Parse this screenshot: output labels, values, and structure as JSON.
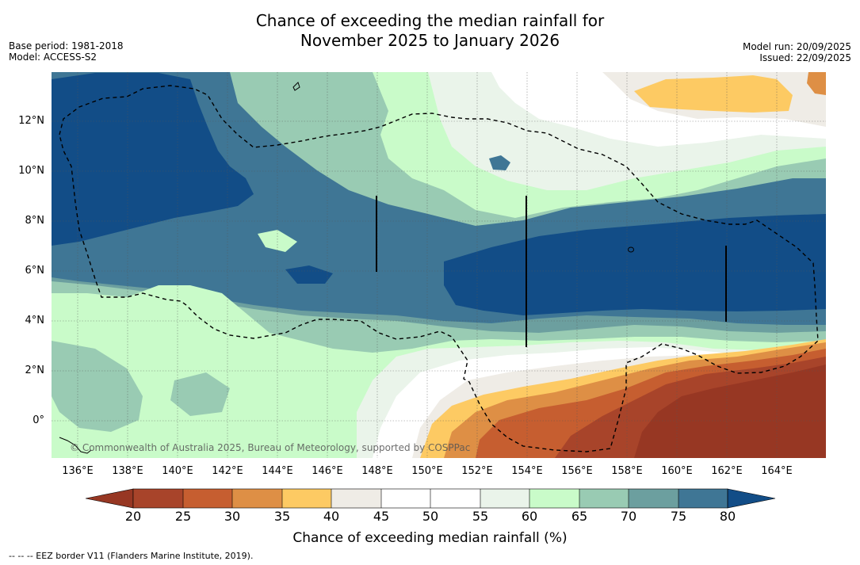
{
  "title": {
    "line1": "Chance of exceeding the median rainfall for",
    "line2": "November 2025 to January 2026"
  },
  "meta_left": {
    "base_period": "Base period: 1981-2018",
    "model": "Model: ACCESS-S2"
  },
  "meta_right": {
    "model_run": "Model run: 20/09/2025",
    "issued": "Issued: 22/09/2025"
  },
  "map": {
    "lat_labels": [
      "12°N",
      "10°N",
      "8°N",
      "6°N",
      "4°N",
      "2°N",
      "0°"
    ],
    "lon_labels": [
      "136°E",
      "138°E",
      "140°E",
      "142°E",
      "144°E",
      "146°E",
      "148°E",
      "150°E",
      "152°E",
      "154°E",
      "156°E",
      "158°E",
      "160°E",
      "162°E",
      "164°E"
    ],
    "copyright": "© Commonwealth of Australia 2025, Bureau of Meteorology, supported by COSPPac",
    "colors": {
      "c20": "#a8442a",
      "c25": "#c65e30",
      "c30": "#de8f45",
      "c35": "#fdca63",
      "c40": "#efece6",
      "c45": "#ffffff",
      "c50": "#ffffff",
      "c55": "#eaf4ea",
      "c60": "#c9fbc9",
      "c65": "#99cbb3",
      "c70": "#6c9f9f",
      "c75": "#3f7695",
      "c80": "#124d87",
      "below": "#973723"
    }
  },
  "colorbar": {
    "ticks": [
      "20",
      "25",
      "30",
      "35",
      "40",
      "45",
      "50",
      "55",
      "60",
      "65",
      "70",
      "75",
      "80"
    ],
    "label": "Chance of exceeding median rainfall (%)"
  },
  "legend_note": "--  --  -- EEZ border V11 (Flanders Marine Institute, 2019)."
}
